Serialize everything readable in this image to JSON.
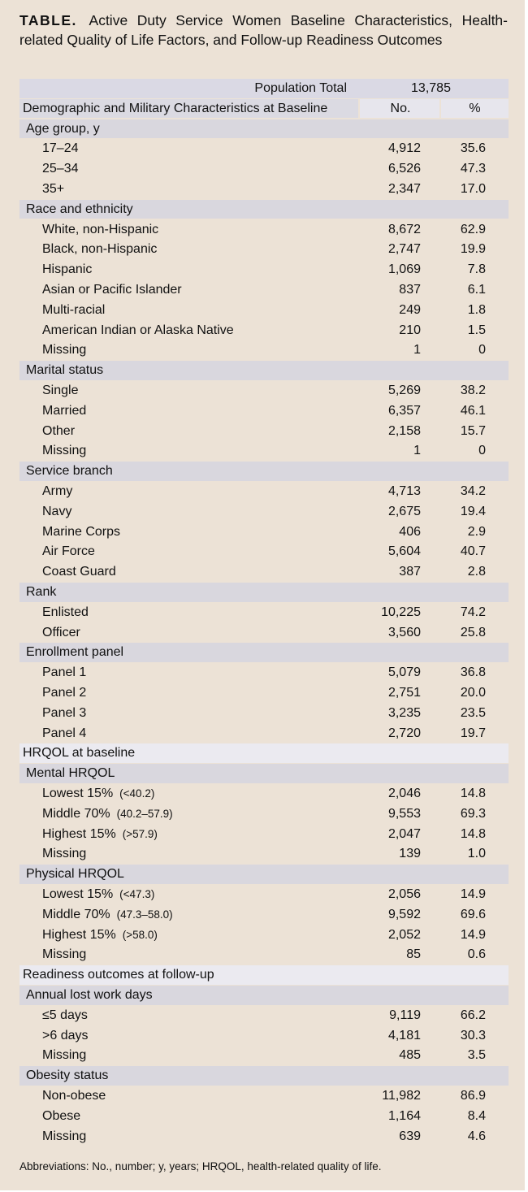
{
  "title": {
    "label": "TABLE.",
    "text": "Active Duty Service Women Baseline Characteristics, Health-related Quality of Life Factors, and Follow-up Readiness Outcomes"
  },
  "table": {
    "population_row": {
      "label": "Population Total",
      "value": "13,785"
    },
    "columns": [
      "No.",
      "%"
    ],
    "sections": [
      {
        "heading": "Demographic and Military Characteristics at Baseline",
        "groups": [
          {
            "title": "Age group, y",
            "rows": [
              {
                "label": "17–24",
                "n": "4,912",
                "pct": "35.6"
              },
              {
                "label": "25–34",
                "n": "6,526",
                "pct": "47.3"
              },
              {
                "label": "35+",
                "n": "2,347",
                "pct": "17.0"
              }
            ]
          },
          {
            "title": "Race and ethnicity",
            "rows": [
              {
                "label": "White, non-Hispanic",
                "n": "8,672",
                "pct": "62.9"
              },
              {
                "label": "Black, non-Hispanic",
                "n": "2,747",
                "pct": "19.9"
              },
              {
                "label": "Hispanic",
                "n": "1,069",
                "pct": "7.8"
              },
              {
                "label": "Asian or Pacific Islander",
                "n": "837",
                "pct": "6.1"
              },
              {
                "label": "Multi-racial",
                "n": "249",
                "pct": "1.8"
              },
              {
                "label": "American Indian or Alaska Native",
                "n": "210",
                "pct": "1.5"
              },
              {
                "label": "Missing",
                "n": "1",
                "pct": "0"
              }
            ]
          },
          {
            "title": "Marital status",
            "rows": [
              {
                "label": "Single",
                "n": "5,269",
                "pct": "38.2"
              },
              {
                "label": "Married",
                "n": "6,357",
                "pct": "46.1"
              },
              {
                "label": "Other",
                "n": "2,158",
                "pct": "15.7"
              },
              {
                "label": "Missing",
                "n": "1",
                "pct": "0"
              }
            ]
          },
          {
            "title": "Service branch",
            "rows": [
              {
                "label": "Army",
                "n": "4,713",
                "pct": "34.2"
              },
              {
                "label": "Navy",
                "n": "2,675",
                "pct": "19.4"
              },
              {
                "label": "Marine Corps",
                "n": "406",
                "pct": "2.9"
              },
              {
                "label": "Air Force",
                "n": "5,604",
                "pct": "40.7"
              },
              {
                "label": "Coast Guard",
                "n": "387",
                "pct": "2.8"
              }
            ]
          },
          {
            "title": "Rank",
            "rows": [
              {
                "label": "Enlisted",
                "n": "10,225",
                "pct": "74.2"
              },
              {
                "label": "Officer",
                "n": "3,560",
                "pct": "25.8"
              }
            ]
          },
          {
            "title": "Enrollment panel",
            "rows": [
              {
                "label": "Panel 1",
                "n": "5,079",
                "pct": "36.8"
              },
              {
                "label": "Panel 2",
                "n": "2,751",
                "pct": "20.0"
              },
              {
                "label": "Panel 3",
                "n": "3,235",
                "pct": "23.5"
              },
              {
                "label": "Panel 4",
                "n": "2,720",
                "pct": "19.7"
              }
            ]
          }
        ]
      },
      {
        "heading": "HRQOL at baseline",
        "groups": [
          {
            "title": "Mental HRQOL",
            "rows": [
              {
                "label": "Lowest 15%",
                "range": "(<40.2)",
                "n": "2,046",
                "pct": "14.8"
              },
              {
                "label": "Middle 70%",
                "range": "(40.2–57.9)",
                "n": "9,553",
                "pct": "69.3"
              },
              {
                "label": "Highest 15%",
                "range": "(>57.9)",
                "n": "2,047",
                "pct": "14.8"
              },
              {
                "label": "Missing",
                "n": "139",
                "pct": "1.0"
              }
            ]
          },
          {
            "title": "Physical HRQOL",
            "rows": [
              {
                "label": "Lowest 15%",
                "range": "(<47.3)",
                "n": "2,056",
                "pct": "14.9"
              },
              {
                "label": "Middle 70%",
                "range": "(47.3–58.0)",
                "n": "9,592",
                "pct": "69.6"
              },
              {
                "label": "Highest 15%",
                "range": "(>58.0)",
                "n": "2,052",
                "pct": "14.9"
              },
              {
                "label": "Missing",
                "n": "85",
                "pct": "0.6"
              }
            ]
          }
        ]
      },
      {
        "heading": "Readiness outcomes at follow-up",
        "groups": [
          {
            "title": "Annual lost work days",
            "rows": [
              {
                "label": "≤5 days",
                "n": "9,119",
                "pct": "66.2"
              },
              {
                "label": ">6 days",
                "n": "4,181",
                "pct": "30.3"
              },
              {
                "label": "Missing",
                "n": "485",
                "pct": "3.5"
              }
            ]
          },
          {
            "title": "Obesity status",
            "rows": [
              {
                "label": "Non-obese",
                "n": "11,982",
                "pct": "86.9"
              },
              {
                "label": "Obese",
                "n": "1,164",
                "pct": "8.4"
              },
              {
                "label": "Missing",
                "n": "639",
                "pct": "4.6"
              }
            ]
          }
        ]
      }
    ]
  },
  "footnote": "Abbreviations: No., number; y, years; HRQOL, health-related quality of life."
}
